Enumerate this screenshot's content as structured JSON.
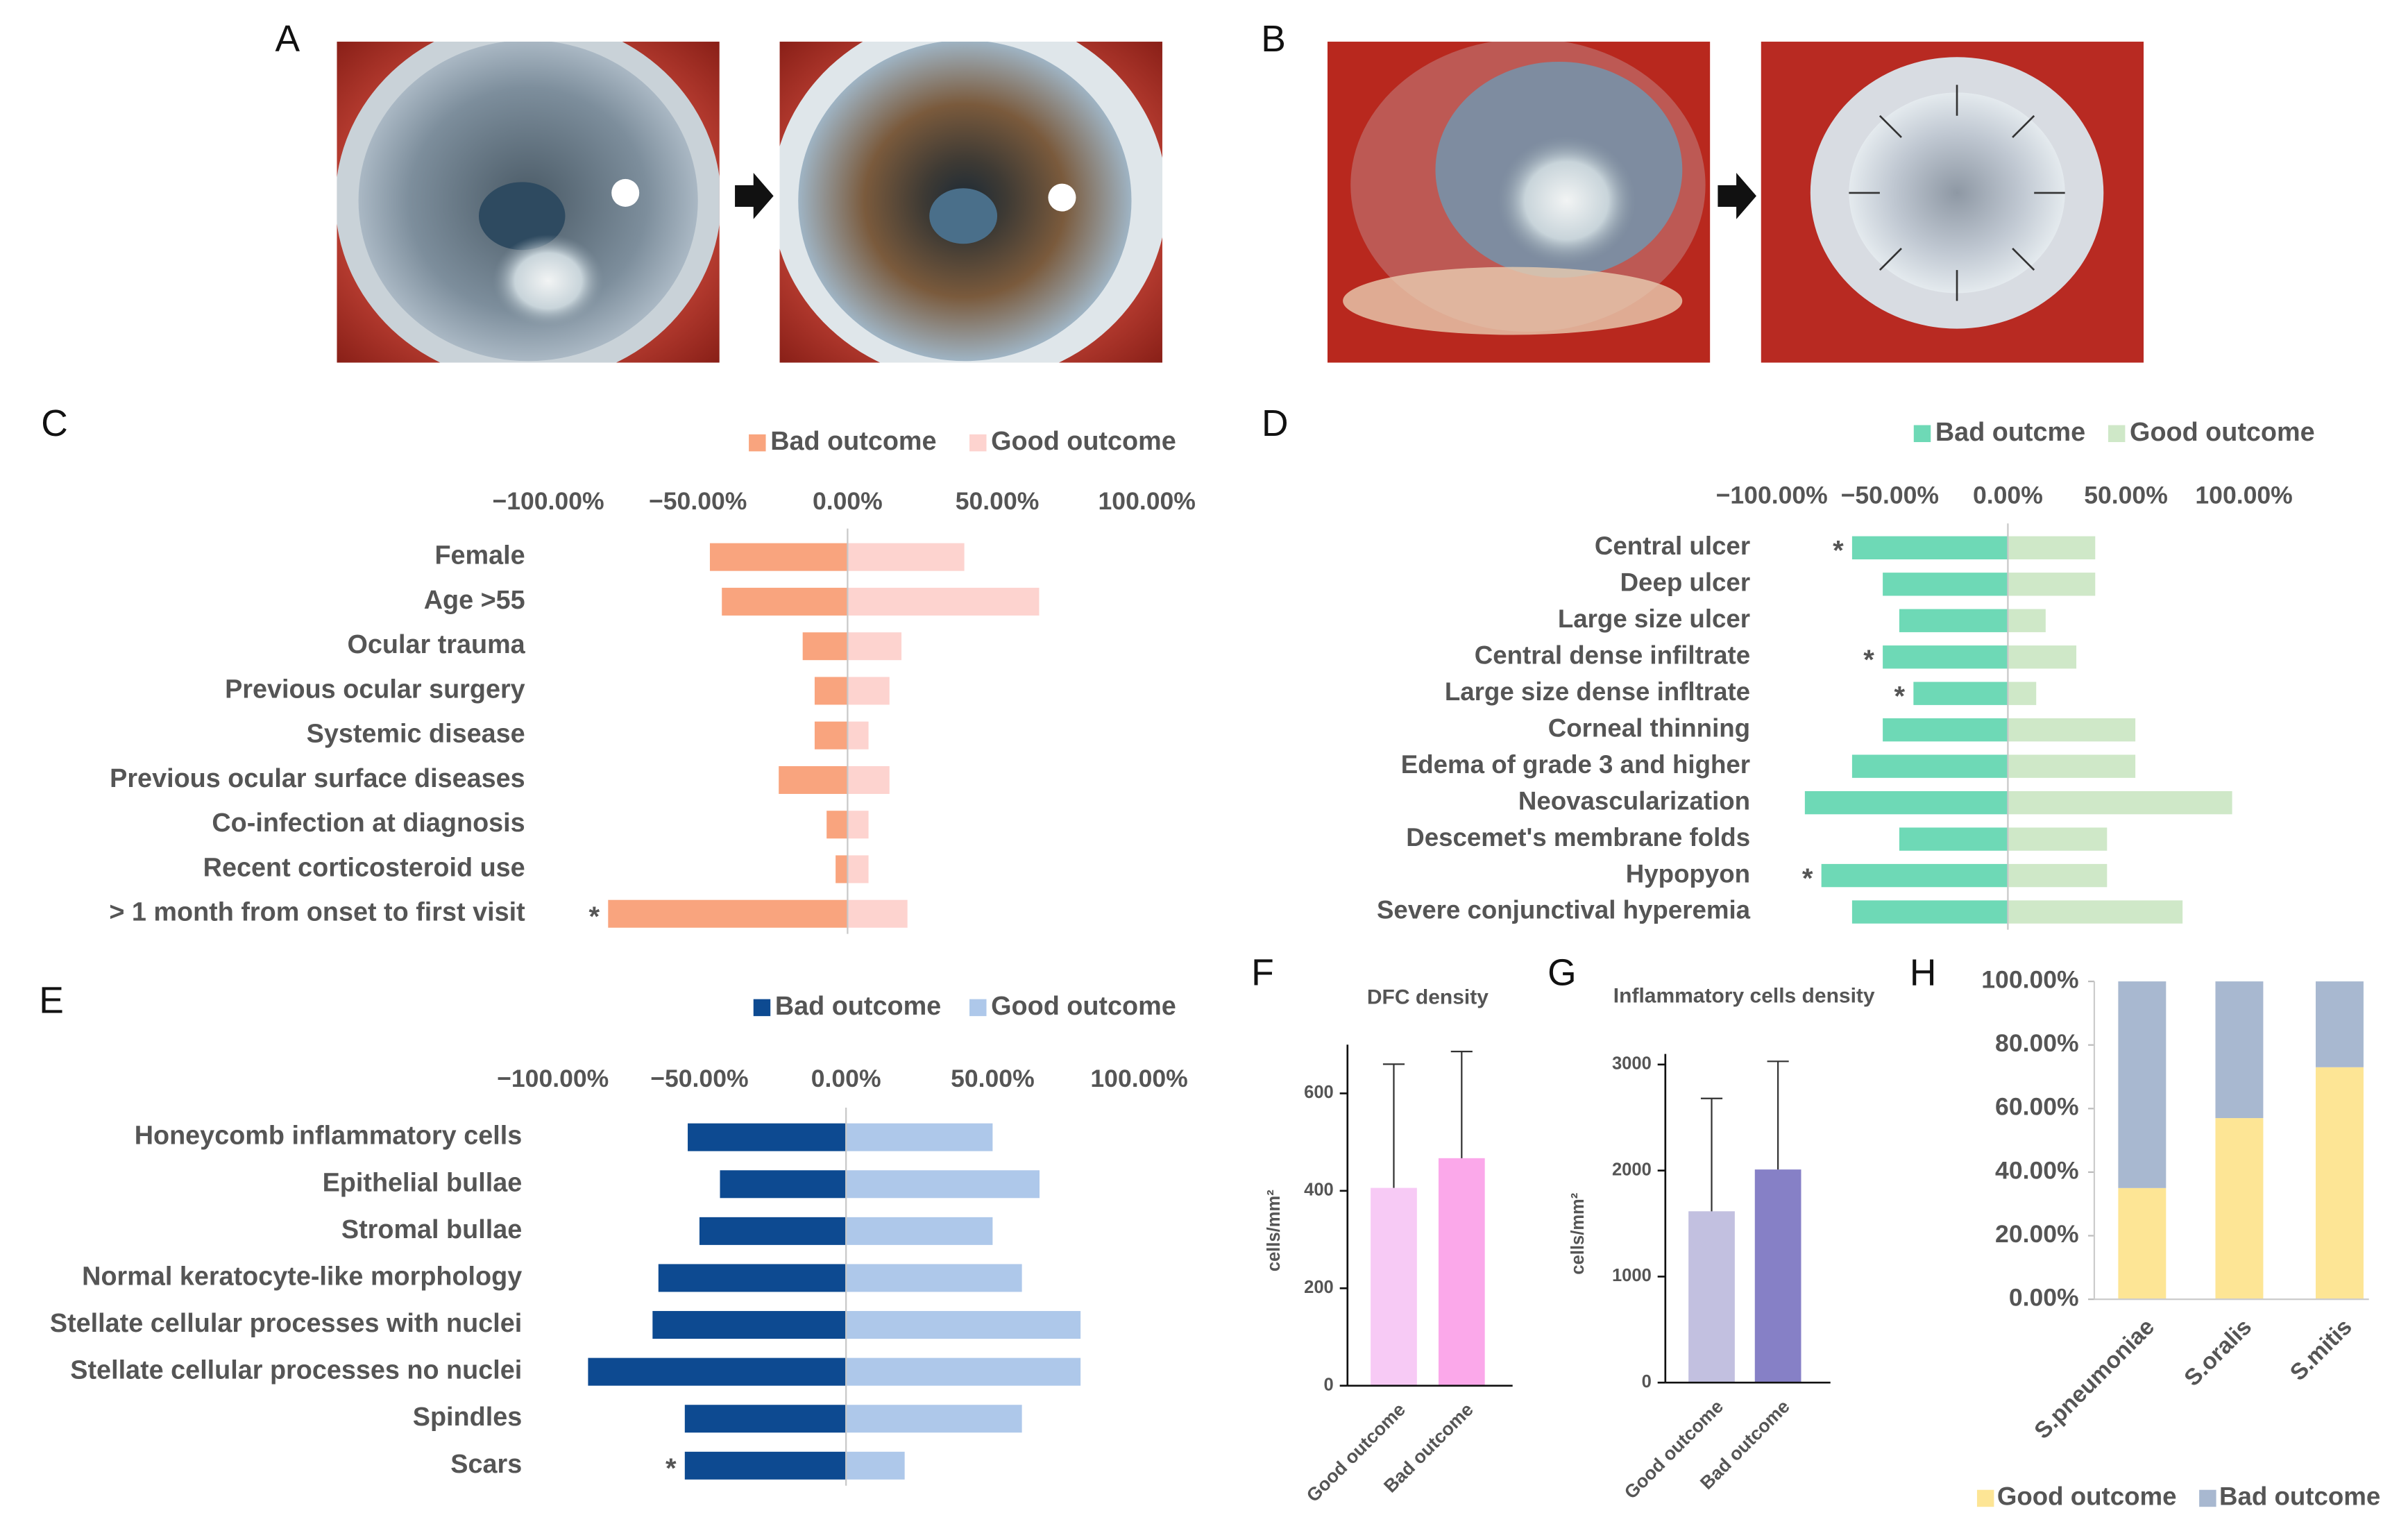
{
  "images": [
    {
      "panel": "A"
    },
    {
      "panel": "B"
    }
  ],
  "chart_data": [
    {
      "type": "diverging_bar",
      "panel": "C",
      "categories": [
        "Female",
        "Age >55",
        "Ocular trauma",
        "Previous ocular surgery",
        "Systemic disease",
        "Previous ocular surface diseases",
        "Co-infection at diagnosis",
        "Recent corticosteroid use",
        "> 1 month from onset to first visit"
      ],
      "series": [
        {
          "name": "Bad outcome",
          "color": "#f9a47e",
          "values": [
            -46,
            -42,
            -15,
            -11,
            -11,
            -23,
            -7,
            -4,
            -80
          ]
        },
        {
          "name": "Good outcome",
          "color": "#fdd3cf",
          "values": [
            39,
            64,
            18,
            14,
            7,
            14,
            7,
            7,
            20
          ]
        }
      ],
      "significance": [
        null,
        null,
        null,
        null,
        null,
        null,
        null,
        null,
        "*"
      ],
      "xlim": [
        -100,
        100
      ],
      "xticks": [
        {
          "value": -100,
          "label": "−100.00%"
        },
        {
          "value": -50,
          "label": "−50.00%"
        },
        {
          "value": 0,
          "label": "0.00%"
        },
        {
          "value": 50,
          "label": "50.00%"
        },
        {
          "value": 100,
          "label": "100.00%"
        }
      ],
      "legend": "top"
    },
    {
      "type": "diverging_bar",
      "panel": "D",
      "categories": [
        "Central ulcer",
        "Deep ulcer",
        "Large size ulcer",
        "Central dense infiltrate",
        "Large size dense infltrate",
        "Corneal thinning",
        "Edema of grade 3 and higher",
        "Neovascularization",
        "Descemet's membrane folds",
        "Hypopyon",
        "Severe conjunctival hyperemia"
      ],
      "series": [
        {
          "name": "Bad outcme",
          "color": "#6ed9b6",
          "values": [
            -66,
            -53,
            -46,
            -53,
            -40,
            -53,
            -66,
            -86,
            -46,
            -79,
            -66
          ]
        },
        {
          "name": "Good outcome",
          "color": "#cfe8c8",
          "values": [
            37,
            37,
            16,
            29,
            12,
            54,
            54,
            95,
            42,
            42,
            74
          ]
        }
      ],
      "significance": [
        "*",
        null,
        null,
        "*",
        "*",
        null,
        null,
        null,
        null,
        "*",
        null
      ],
      "xlim": [
        -100,
        100
      ],
      "xticks": [
        {
          "value": -100,
          "label": "−100.00%"
        },
        {
          "value": -50,
          "label": "−50.00%"
        },
        {
          "value": 0,
          "label": "0.00%"
        },
        {
          "value": 50,
          "label": "50.00%"
        },
        {
          "value": 100,
          "label": "100.00%"
        }
      ],
      "legend": "top"
    },
    {
      "type": "diverging_bar",
      "panel": "E",
      "categories": [
        "Honeycomb inflammatory cells",
        "Epithelial bullae",
        "Stromal bullae",
        "Normal keratocyte-like morphology",
        "Stellate cellular processes with nuclei",
        "Stellate cellular processes no nuclei",
        "Spindles",
        "Scars"
      ],
      "series": [
        {
          "name": "Bad outcome",
          "color": "#0d4a91",
          "values": [
            -54,
            -43,
            -50,
            -64,
            -66,
            -88,
            -55,
            -55
          ]
        },
        {
          "name": "Good outcome",
          "color": "#aec8ea",
          "values": [
            50,
            66,
            50,
            60,
            80,
            80,
            60,
            20
          ]
        }
      ],
      "significance": [
        null,
        null,
        null,
        null,
        null,
        null,
        null,
        "*"
      ],
      "xlim": [
        -100,
        100
      ],
      "xticks": [
        {
          "value": -100,
          "label": "−100.00%"
        },
        {
          "value": -50,
          "label": "−50.00%"
        },
        {
          "value": 0,
          "label": "0.00%"
        },
        {
          "value": 50,
          "label": "50.00%"
        },
        {
          "value": 100,
          "label": "100.00%"
        }
      ],
      "legend": "top"
    },
    {
      "type": "bar",
      "panel": "F",
      "title": "DFC density",
      "y_label": "cells/mm²",
      "categories": [
        "Good outcome",
        "Bad outcome"
      ],
      "values": [
        406,
        467
      ],
      "errors": [
        254,
        219
      ],
      "colors": [
        "#f7caf5",
        "#fba8ea"
      ],
      "ylim": [
        0,
        700
      ],
      "yticks": [
        0,
        200,
        400,
        600
      ]
    },
    {
      "type": "bar",
      "panel": "G",
      "title": "Inflammatory cells density",
      "y_label": "cells/mm²",
      "categories": [
        "Good outcome",
        "Bad outcome"
      ],
      "values": [
        1616,
        2010
      ],
      "errors": [
        1064,
        1020
      ],
      "colors": [
        "#c2c0e0",
        "#8680c6"
      ],
      "ylim": [
        0,
        3100
      ],
      "yticks": [
        0,
        1000,
        2000,
        3000
      ]
    },
    {
      "type": "stacked_bar",
      "panel": "H",
      "categories": [
        "S.pneumoniae",
        "S.oralis",
        "S.mitis"
      ],
      "series": [
        {
          "name": "Good outcome",
          "color": "#fde595",
          "values": [
            35,
            57,
            73
          ]
        },
        {
          "name": "Bad outcome",
          "color": "#a8b8d0",
          "values": [
            65,
            43,
            27
          ]
        }
      ],
      "ylim": [
        0,
        100
      ],
      "yticks": [
        {
          "value": 0,
          "label": "0.00%"
        },
        {
          "value": 20,
          "label": "20.00%"
        },
        {
          "value": 40,
          "label": "40.00%"
        },
        {
          "value": 60,
          "label": "60.00%"
        },
        {
          "value": 80,
          "label": "80.00%"
        },
        {
          "value": 100,
          "label": "100.00%"
        }
      ],
      "legend": "bottom"
    }
  ]
}
